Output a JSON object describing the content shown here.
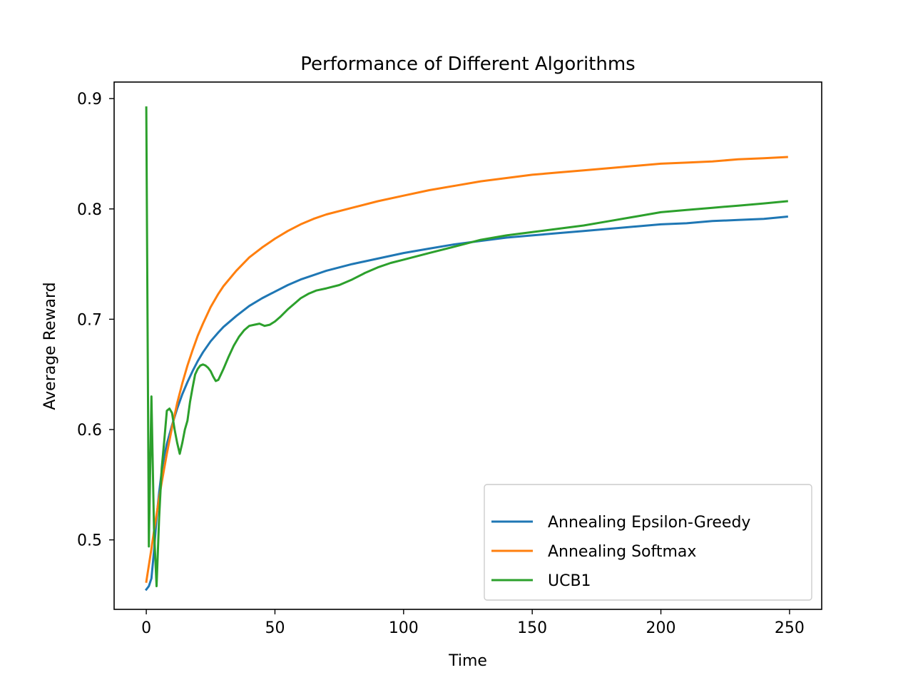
{
  "chart_data": {
    "type": "line",
    "title": "Performance of Different Algorithms",
    "xlabel": "Time",
    "ylabel": "Average Reward",
    "xlim": [
      -12.5,
      262.5
    ],
    "ylim": [
      0.437,
      0.915
    ],
    "xticks": [
      0,
      50,
      100,
      150,
      200,
      250
    ],
    "xtick_labels": [
      "0",
      "50",
      "100",
      "150",
      "200",
      "250"
    ],
    "yticks": [
      0.5,
      0.6,
      0.7,
      0.8,
      0.9
    ],
    "ytick_labels": [
      "0.5",
      "0.6",
      "0.7",
      "0.8",
      "0.9"
    ],
    "grid": false,
    "legend_position": "lower-right",
    "series": [
      {
        "name": "Annealing Epsilon-Greedy",
        "color": "#1f77b4",
        "x": [
          0,
          1,
          2,
          3,
          4,
          5,
          6,
          7,
          8,
          10,
          12,
          14,
          16,
          18,
          20,
          22,
          25,
          28,
          30,
          35,
          40,
          45,
          50,
          55,
          60,
          65,
          70,
          80,
          90,
          100,
          110,
          120,
          130,
          140,
          150,
          160,
          170,
          180,
          190,
          200,
          210,
          220,
          230,
          240,
          249
        ],
        "y": [
          0.455,
          0.458,
          0.465,
          0.49,
          0.52,
          0.543,
          0.562,
          0.576,
          0.587,
          0.604,
          0.619,
          0.632,
          0.643,
          0.653,
          0.662,
          0.67,
          0.68,
          0.688,
          0.693,
          0.703,
          0.712,
          0.719,
          0.725,
          0.731,
          0.736,
          0.74,
          0.744,
          0.75,
          0.755,
          0.76,
          0.764,
          0.768,
          0.771,
          0.774,
          0.776,
          0.778,
          0.78,
          0.782,
          0.784,
          0.786,
          0.787,
          0.789,
          0.79,
          0.791,
          0.793
        ]
      },
      {
        "name": "Annealing Softmax",
        "color": "#ff7f0e",
        "x": [
          0,
          1,
          2,
          3,
          4,
          5,
          6,
          8,
          10,
          12,
          14,
          16,
          18,
          20,
          22,
          25,
          28,
          30,
          35,
          40,
          45,
          50,
          55,
          60,
          65,
          70,
          80,
          90,
          100,
          110,
          120,
          130,
          140,
          150,
          160,
          170,
          180,
          190,
          200,
          210,
          220,
          230,
          240,
          249
        ],
        "y": [
          0.462,
          0.477,
          0.492,
          0.508,
          0.523,
          0.538,
          0.552,
          0.578,
          0.602,
          0.624,
          0.642,
          0.658,
          0.672,
          0.685,
          0.696,
          0.711,
          0.723,
          0.73,
          0.744,
          0.756,
          0.765,
          0.773,
          0.78,
          0.786,
          0.791,
          0.795,
          0.801,
          0.807,
          0.812,
          0.817,
          0.821,
          0.825,
          0.828,
          0.831,
          0.833,
          0.835,
          0.837,
          0.839,
          0.841,
          0.842,
          0.843,
          0.845,
          0.846,
          0.847
        ]
      },
      {
        "name": "UCB1",
        "color": "#2ca02c",
        "x": [
          0,
          1,
          2,
          3,
          4,
          5,
          6,
          7,
          8,
          9,
          10,
          11,
          12,
          13,
          14,
          15,
          16,
          17,
          18,
          19,
          20,
          21,
          22,
          23,
          24,
          25,
          26,
          27,
          28,
          29,
          30,
          32,
          34,
          36,
          38,
          40,
          42,
          44,
          46,
          48,
          50,
          52,
          55,
          58,
          60,
          63,
          66,
          70,
          75,
          80,
          85,
          90,
          95,
          100,
          110,
          120,
          130,
          140,
          150,
          160,
          170,
          180,
          190,
          200,
          210,
          220,
          230,
          240,
          249
        ],
        "y": [
          0.892,
          0.494,
          0.63,
          0.51,
          0.458,
          0.52,
          0.565,
          0.59,
          0.617,
          0.619,
          0.615,
          0.6,
          0.588,
          0.578,
          0.588,
          0.6,
          0.608,
          0.625,
          0.638,
          0.65,
          0.655,
          0.658,
          0.659,
          0.658,
          0.656,
          0.653,
          0.648,
          0.644,
          0.645,
          0.65,
          0.655,
          0.666,
          0.676,
          0.684,
          0.69,
          0.694,
          0.695,
          0.696,
          0.694,
          0.695,
          0.698,
          0.702,
          0.709,
          0.715,
          0.719,
          0.723,
          0.726,
          0.728,
          0.731,
          0.736,
          0.742,
          0.747,
          0.751,
          0.754,
          0.76,
          0.766,
          0.772,
          0.776,
          0.779,
          0.782,
          0.785,
          0.789,
          0.793,
          0.797,
          0.799,
          0.801,
          0.803,
          0.805,
          0.807
        ]
      }
    ]
  }
}
